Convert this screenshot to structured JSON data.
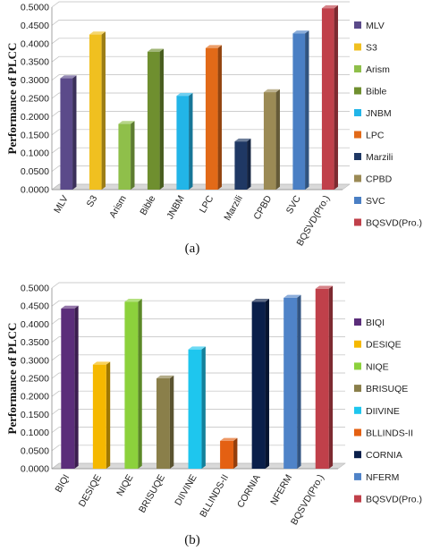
{
  "chart_data": [
    {
      "type": "bar",
      "caption": "(a)",
      "ylabel": "Performance of PLCC",
      "ylim": [
        0,
        0.5
      ],
      "yticks": [
        "0.0000",
        "0.0500",
        "0.1000",
        "0.1500",
        "0.2000",
        "0.2500",
        "0.3000",
        "0.3500",
        "0.4000",
        "0.4500",
        "0.5000"
      ],
      "grid": true,
      "legend_position": "right",
      "categories": [
        "MLV",
        "S3",
        "Arism",
        "Bible",
        "JNBM",
        "LPC",
        "Marzili",
        "CPBD",
        "SVC",
        "BQSVD(Pro.)"
      ],
      "values": [
        0.305,
        0.425,
        0.18,
        0.378,
        0.257,
        0.388,
        0.132,
        0.267,
        0.428,
        0.497
      ],
      "colors": [
        "#5b4a8a",
        "#f0c020",
        "#8fbf4a",
        "#6f8f2f",
        "#22b5e8",
        "#e26a18",
        "#1f3864",
        "#9b8a55",
        "#4a7fc4",
        "#c0404a"
      ]
    },
    {
      "type": "bar",
      "caption": "(b)",
      "ylabel": "Performance of PLCC",
      "ylim": [
        0,
        0.5
      ],
      "yticks": [
        "0.0000",
        "0.0500",
        "0.1000",
        "0.1500",
        "0.2000",
        "0.2500",
        "0.3000",
        "0.3500",
        "0.4000",
        "0.4500",
        "0.5000"
      ],
      "grid": true,
      "legend_position": "right",
      "categories": [
        "BIQI",
        "DESIQE",
        "NIQE",
        "BRISUQE",
        "DIIVINE",
        "BLLINDS-II",
        "CORNIA",
        "NFERM",
        "BQSVD(Pro.)"
      ],
      "values": [
        0.443,
        0.288,
        0.462,
        0.25,
        0.33,
        0.077,
        0.462,
        0.473,
        0.498
      ],
      "colors": [
        "#5b2d7a",
        "#f5b800",
        "#8cd13c",
        "#8a7f4a",
        "#1ec6ee",
        "#e46012",
        "#0a1f4a",
        "#4f83c8",
        "#c0404a"
      ]
    }
  ]
}
